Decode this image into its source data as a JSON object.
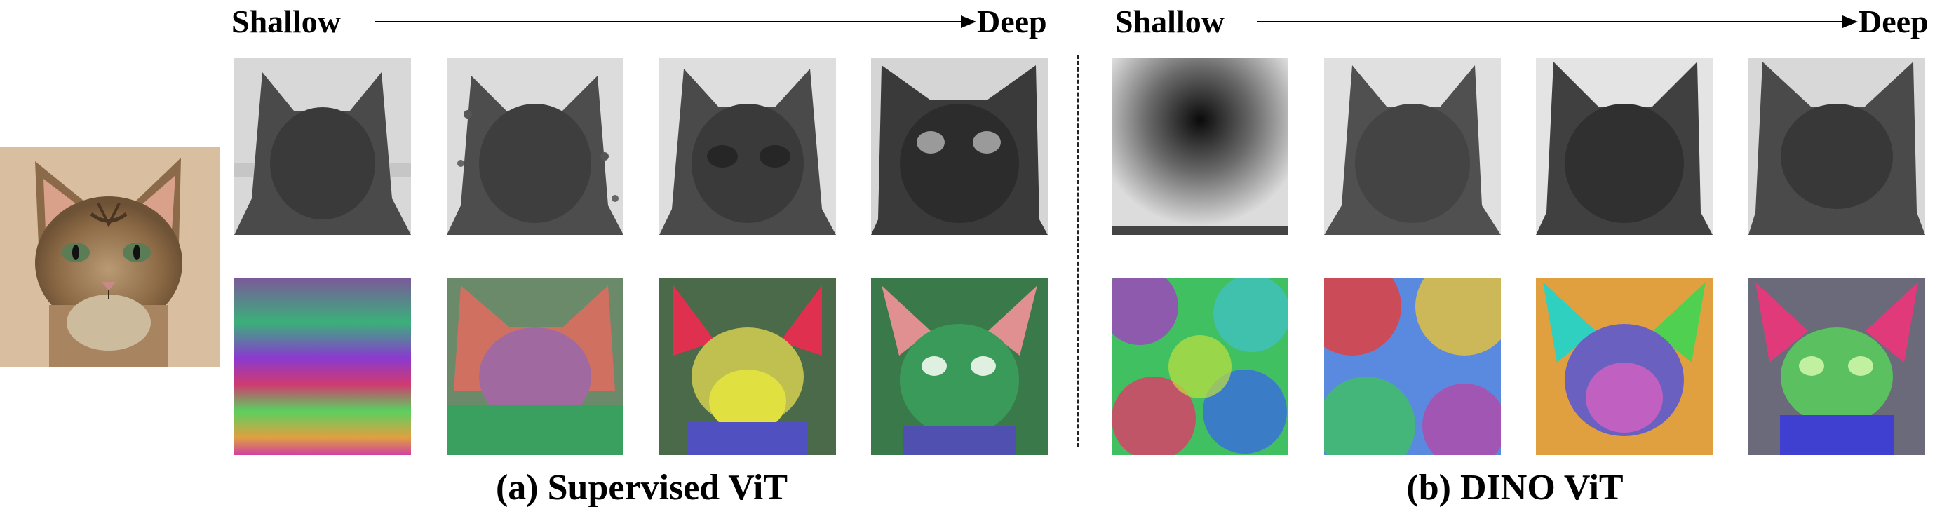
{
  "header_left": {
    "start": "Shallow",
    "end": "Deep"
  },
  "header_right": {
    "start": "Shallow",
    "end": "Deep"
  },
  "captions": {
    "left": "(a) Supervised ViT",
    "right": "(b) DINO ViT"
  },
  "panels": {
    "left": {
      "grayscale": [
        "sup-gray-1",
        "sup-gray-2",
        "sup-gray-3",
        "sup-gray-4"
      ],
      "rgb": [
        "sup-rgb-1",
        "sup-rgb-2",
        "sup-rgb-3",
        "sup-rgb-4"
      ]
    },
    "right": {
      "grayscale": [
        "dino-gray-1",
        "dino-gray-2",
        "dino-gray-3",
        "dino-gray-4"
      ],
      "rgb": [
        "dino-rgb-1",
        "dino-rgb-2",
        "dino-rgb-3",
        "dino-rgb-4"
      ]
    }
  },
  "input_image": "cat-photo"
}
